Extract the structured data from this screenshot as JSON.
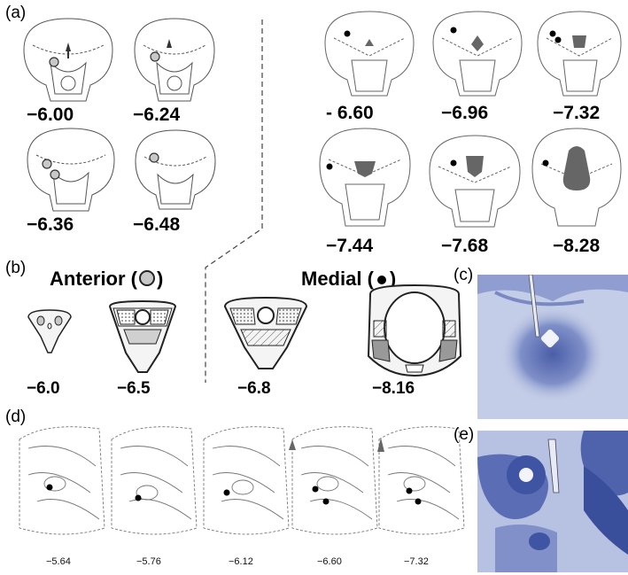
{
  "panels": {
    "a": {
      "label": "(a)",
      "coords": [
        "−6.00",
        "−6.24",
        "−6.36",
        "−6.48",
        "- 6.60",
        "−6.96",
        "−7.32",
        "−7.44",
        "−7.68",
        "−8.28"
      ]
    },
    "b": {
      "label": "(b)",
      "anterior_title": "Anterior (",
      "medial_title": "Medial (",
      "close_paren": ")",
      "coords": [
        "−6.0",
        "−6.5",
        "−6.8",
        "−8.16"
      ]
    },
    "c": {
      "label": "(c)"
    },
    "d": {
      "label": "(d)",
      "coords": [
        "−5.64",
        "−5.76",
        "−6.12",
        "−6.60",
        "−7.32"
      ]
    },
    "e": {
      "label": "(e)"
    }
  },
  "colors": {
    "stain_blue": "#5a6fb8",
    "stain_light": "#b9c3e3",
    "marker_gray": "#c8c8c8",
    "fill_dark": "#555555"
  }
}
